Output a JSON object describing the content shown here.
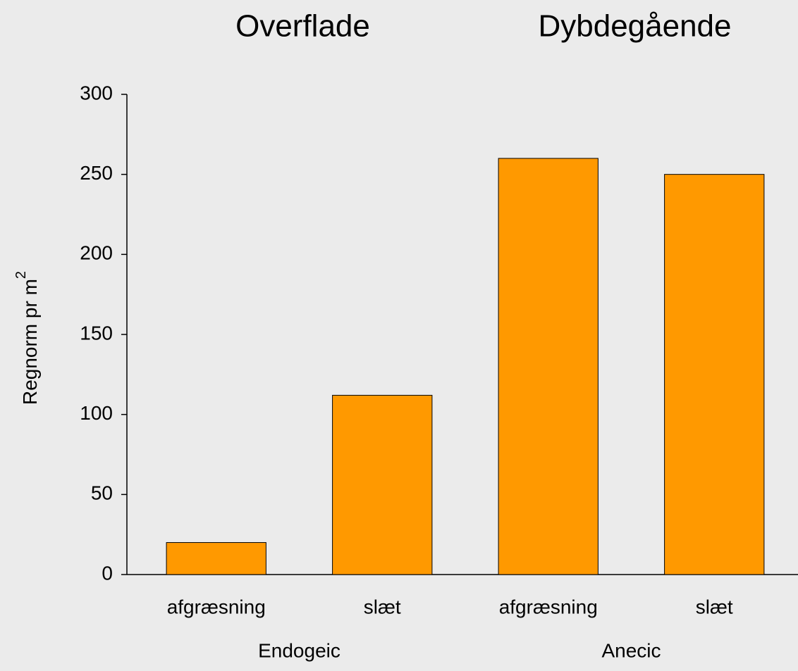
{
  "chart_data": {
    "type": "bar",
    "titles": [
      "Overflade",
      "Dybdegående"
    ],
    "y_label": "Regnorm pr m",
    "y_label_superscript": "2",
    "categories": [
      "afgræsning",
      "slæt",
      "afgræsning",
      "slæt"
    ],
    "groups": [
      "Endogeic",
      "Anecic"
    ],
    "values": [
      20,
      112,
      260,
      250
    ],
    "color": "#ff9900",
    "ylim": [
      0,
      300
    ],
    "yticks": [
      0,
      50,
      100,
      150,
      200,
      250,
      300
    ],
    "grid": false
  }
}
